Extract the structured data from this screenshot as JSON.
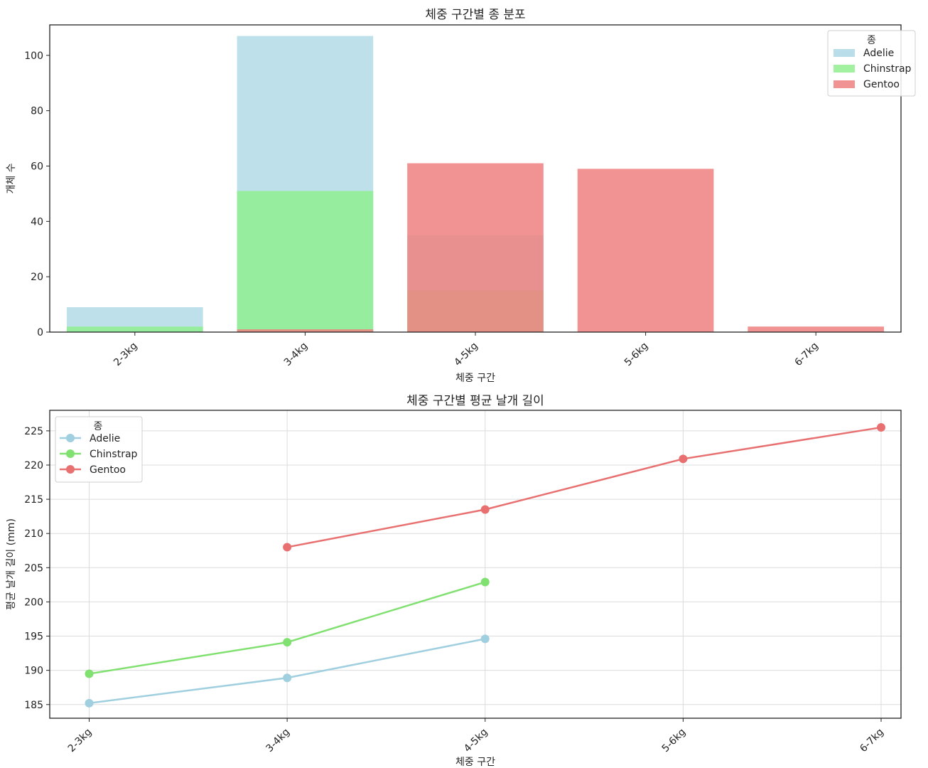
{
  "chart_data": [
    {
      "type": "bar",
      "title": "체중 구간별 종 분포",
      "xlabel": "체중 구간",
      "ylabel": "개체 수",
      "categories": [
        "2-3kg",
        "3-4kg",
        "4-5kg",
        "5-6kg",
        "6-7kg"
      ],
      "ylim": [
        0,
        111
      ],
      "yticks": [
        0,
        20,
        40,
        60,
        80,
        100
      ],
      "grid": false,
      "legend": {
        "title": "종",
        "position": "top-right"
      },
      "overlapping": true,
      "series": [
        {
          "name": "Adelie",
          "color": "#add8e6",
          "values": [
            9,
            107,
            35,
            0,
            0
          ]
        },
        {
          "name": "Chinstrap",
          "color": "#90ee90",
          "values": [
            2,
            51,
            15,
            0,
            0
          ]
        },
        {
          "name": "Gentoo",
          "color": "#f08080",
          "values": [
            0,
            1,
            61,
            59,
            2
          ]
        }
      ]
    },
    {
      "type": "line",
      "title": "체중 구간별 평균 날개 길이",
      "xlabel": "체중 구간",
      "ylabel": "평균 날개 길이 (mm)",
      "categories": [
        "2-3kg",
        "3-4kg",
        "4-5kg",
        "5-6kg",
        "6-7kg"
      ],
      "ylim": [
        183,
        228
      ],
      "yticks": [
        185,
        190,
        195,
        200,
        205,
        210,
        215,
        220,
        225
      ],
      "grid": true,
      "legend": {
        "title": "종",
        "position": "top-left"
      },
      "series": [
        {
          "name": "Adelie",
          "color": "#a0cfe0",
          "values": [
            185.2,
            188.9,
            194.6,
            null,
            null
          ]
        },
        {
          "name": "Chinstrap",
          "color": "#80e070",
          "values": [
            189.5,
            194.1,
            202.9,
            null,
            null
          ]
        },
        {
          "name": "Gentoo",
          "color": "#e87070",
          "values": [
            null,
            208.0,
            213.5,
            220.9,
            225.5
          ]
        }
      ]
    }
  ]
}
